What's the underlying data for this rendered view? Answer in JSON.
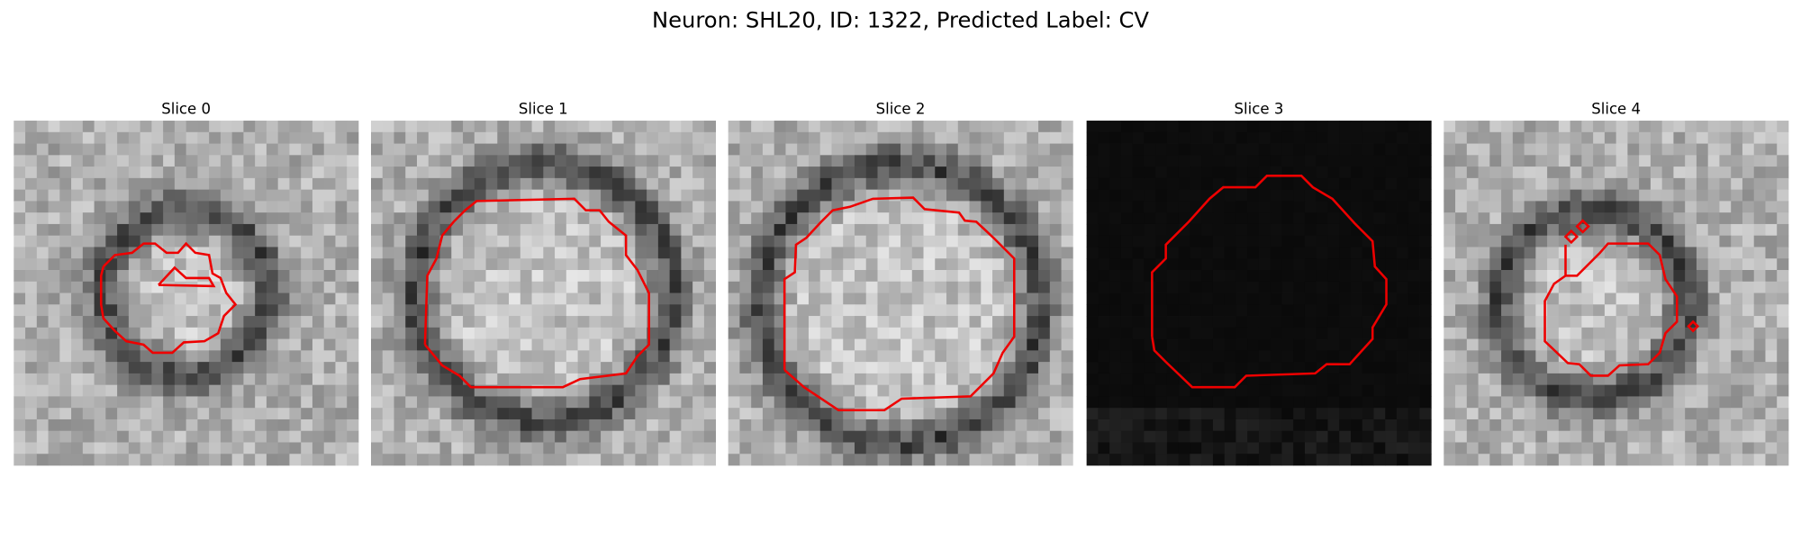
{
  "title": "Neuron: SHL20, ID: 1322, Predicted Label: CV",
  "panels": [
    {
      "title": "Slice 0"
    },
    {
      "title": "Slice 1"
    },
    {
      "title": "Slice 2"
    },
    {
      "title": "Slice 3"
    },
    {
      "title": "Slice 4"
    }
  ]
}
